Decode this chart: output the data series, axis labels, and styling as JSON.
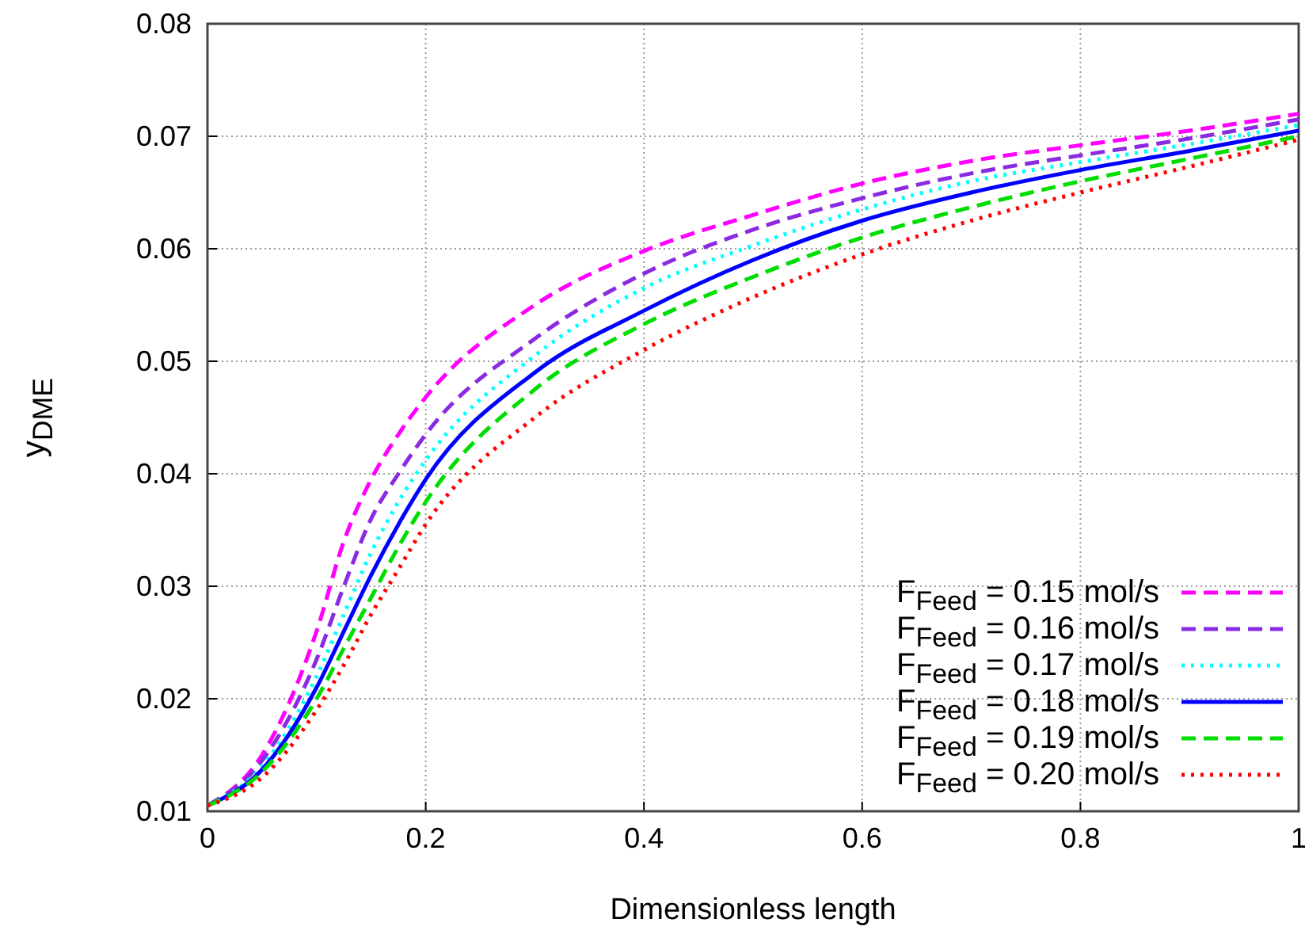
{
  "chart_data": {
    "type": "line",
    "xlabel": "Dimensionless length",
    "ylabel": "y$_{DME}$",
    "x": [
      0,
      0.05,
      0.1,
      0.125,
      0.15,
      0.175,
      0.2,
      0.3,
      0.4,
      0.5,
      0.6,
      0.7,
      0.8,
      0.9,
      1
    ],
    "xlim": [
      0,
      1
    ],
    "xticks": [
      0,
      0.2,
      0.4,
      0.6,
      0.8,
      1
    ],
    "ylim": [
      0.01,
      0.08
    ],
    "yticks": [
      0.01,
      0.02,
      0.03,
      0.04,
      0.05,
      0.06,
      0.07,
      0.08
    ],
    "grid": true,
    "legend": "bottom right",
    "marker": "none",
    "series": [
      {
        "name": "F$_{Feed}$ = 0.15 mol/s",
        "color": "#ff00ff",
        "line_style": "dashed",
        "values": [
          0.0105,
          0.015,
          0.026,
          0.034,
          0.0395,
          0.0435,
          0.0468,
          0.055,
          0.0598,
          0.063,
          0.0658,
          0.0678,
          0.0692,
          0.0705,
          0.072
        ]
      },
      {
        "name": "F$_{Feed}$ = 0.16 mol/s",
        "color": "#8a2be2",
        "line_style": "dashed",
        "values": [
          0.0105,
          0.0145,
          0.0235,
          0.03,
          0.036,
          0.04,
          0.0435,
          0.052,
          0.0578,
          0.0617,
          0.0645,
          0.0667,
          0.0683,
          0.0698,
          0.0715
        ]
      },
      {
        "name": "F$_{Feed}$ = 0.17 mol/s",
        "color": "#00ffff",
        "line_style": "dotted",
        "values": [
          0.0105,
          0.014,
          0.022,
          0.0275,
          0.033,
          0.0375,
          0.0412,
          0.0505,
          0.0565,
          0.0603,
          0.0635,
          0.066,
          0.0677,
          0.0693,
          0.071
        ]
      },
      {
        "name": "F$_{Feed}$ = 0.18 mol/s",
        "color": "#0000ff",
        "line_style": "solid",
        "values": [
          0.0105,
          0.0137,
          0.021,
          0.026,
          0.031,
          0.0355,
          0.0395,
          0.049,
          0.0545,
          0.059,
          0.0625,
          0.065,
          0.067,
          0.0687,
          0.0705
        ]
      },
      {
        "name": "F$_{Feed}$ = 0.19 mol/s",
        "color": "#00dd00",
        "line_style": "dashed",
        "values": [
          0.0105,
          0.0135,
          0.02,
          0.0245,
          0.029,
          0.0335,
          0.0375,
          0.0475,
          0.0533,
          0.0575,
          0.061,
          0.0637,
          0.066,
          0.068,
          0.07
        ]
      },
      {
        "name": "F$_{Feed}$ = 0.20 mol/s",
        "color": "#ff0000",
        "line_style": "dotted",
        "values": [
          0.0105,
          0.013,
          0.019,
          0.023,
          0.0275,
          0.0315,
          0.0355,
          0.045,
          0.051,
          0.0557,
          0.0595,
          0.0625,
          0.065,
          0.0673,
          0.0697
        ]
      }
    ]
  }
}
